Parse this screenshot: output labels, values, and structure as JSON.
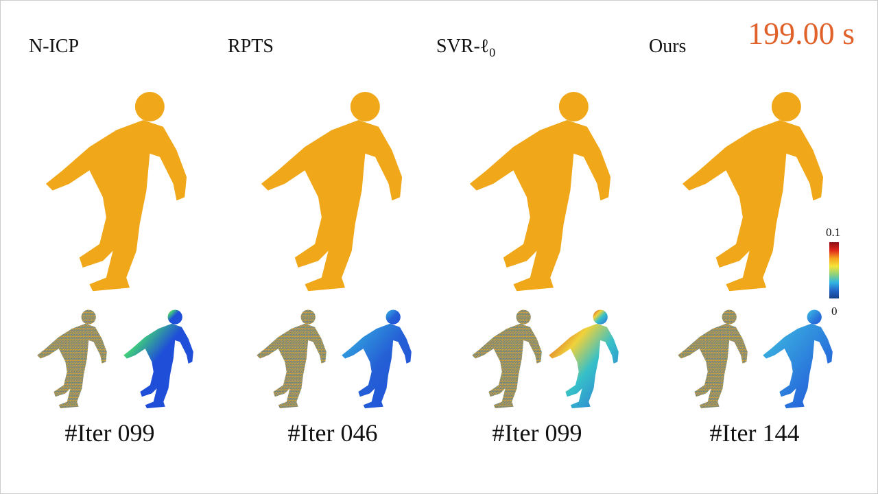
{
  "timer": "199.00 s",
  "columns": [
    {
      "method": "N-ICP",
      "iter": "#Iter 099"
    },
    {
      "method": "RPTS",
      "iter": "#Iter 046"
    },
    {
      "method": "SVR-ℓ",
      "method_sub": "0",
      "iter": "#Iter 099"
    },
    {
      "method": "Ours",
      "iter": "#Iter 144"
    }
  ],
  "colorbar": {
    "max": "0.1",
    "min": "0"
  },
  "colors": {
    "mesh": "#f0a81a",
    "timer": "#e0622a",
    "error_low": "#1f4fd8"
  }
}
